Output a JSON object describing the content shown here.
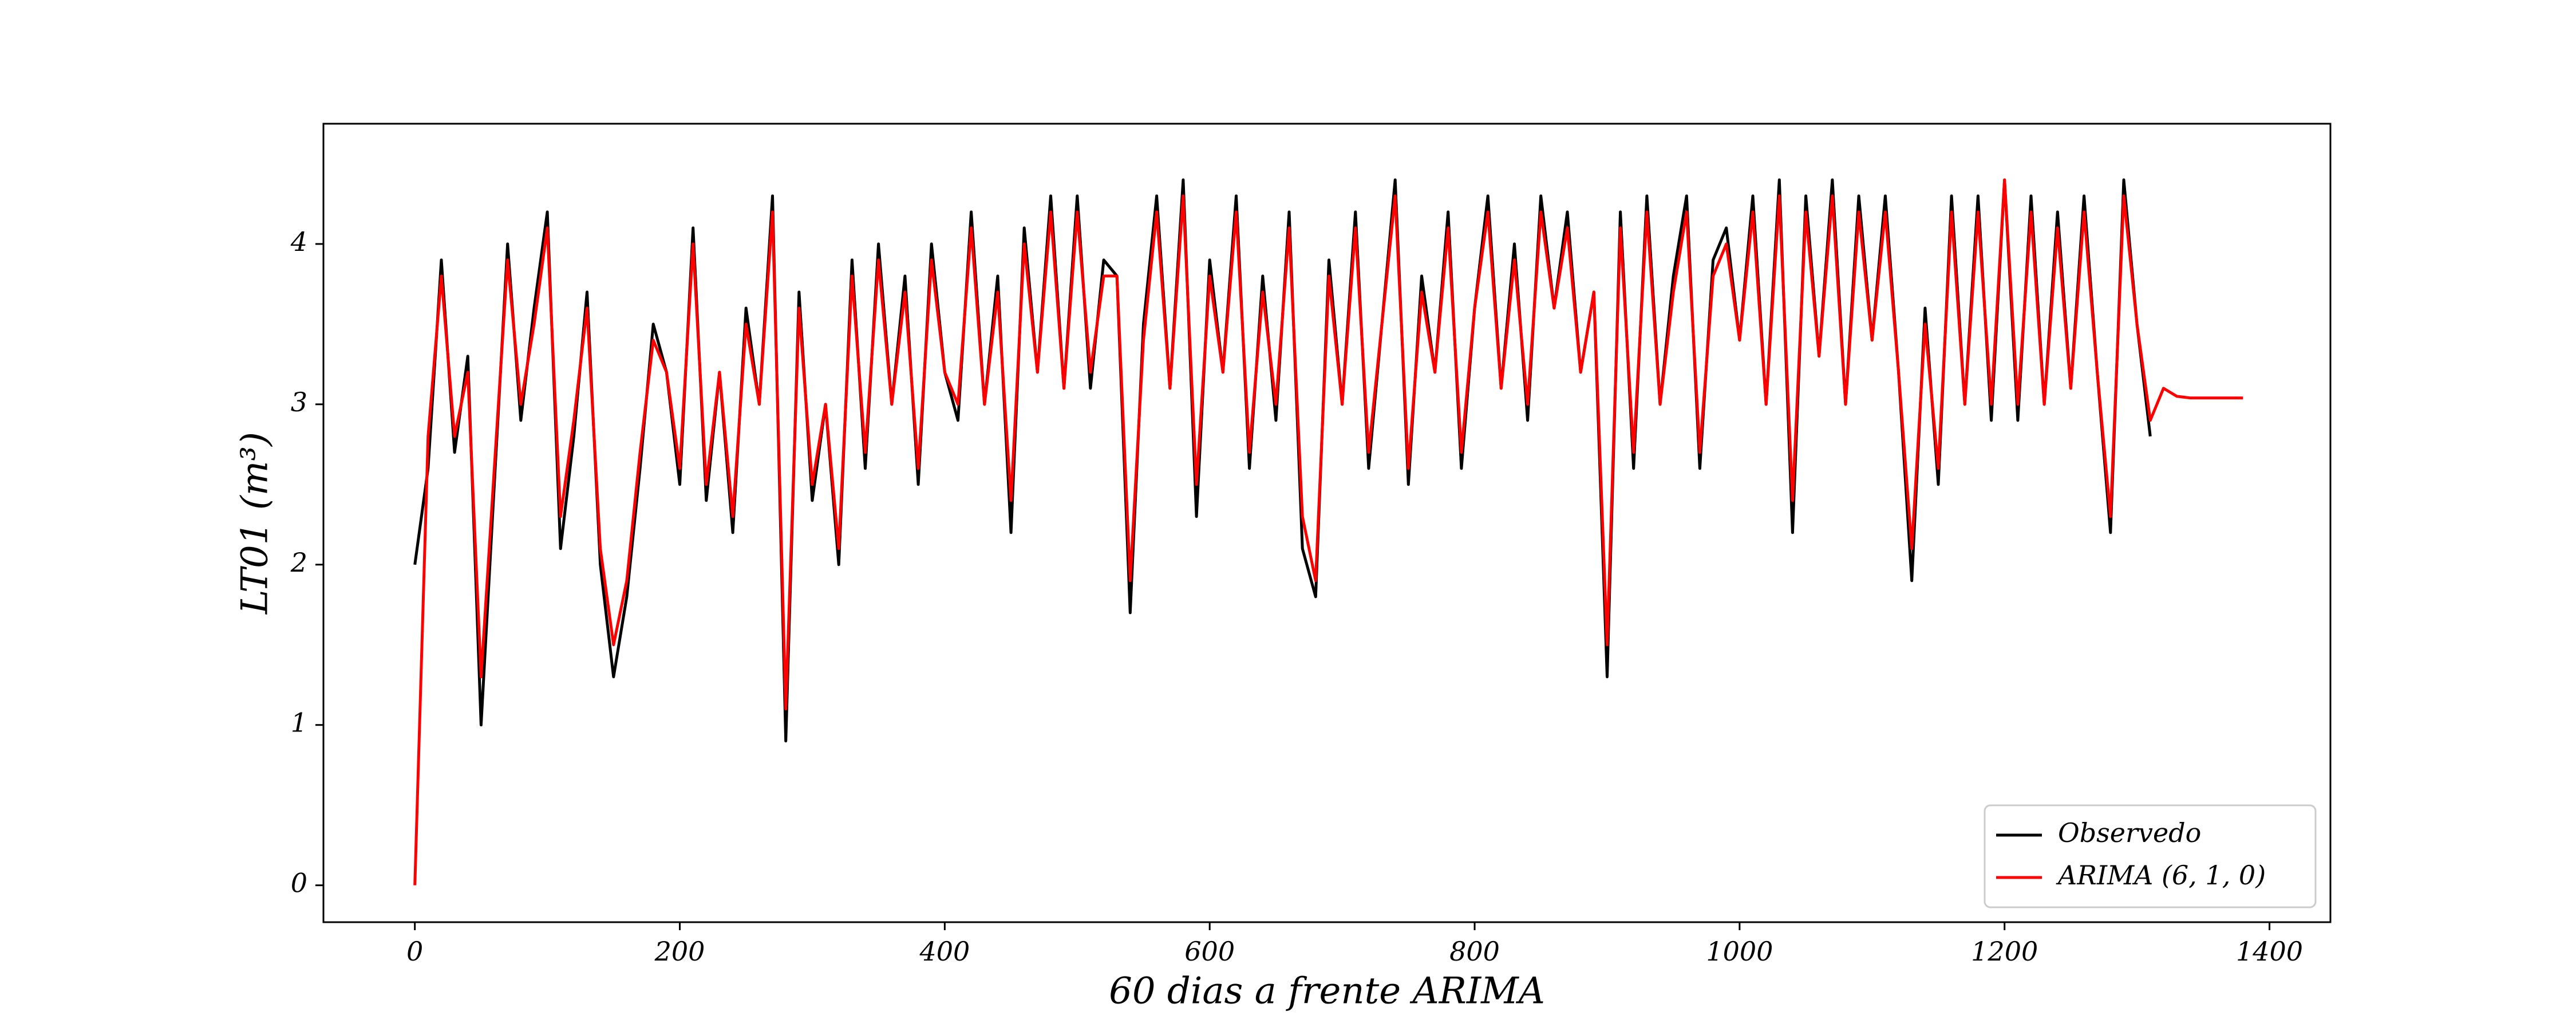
{
  "chart_data": {
    "type": "line",
    "xlabel": "60 dias a frente ARIMA",
    "ylabel": "LT01 (m³)",
    "x": [
      0,
      10,
      20,
      30,
      40,
      50,
      60,
      70,
      80,
      90,
      100,
      110,
      120,
      130,
      140,
      150,
      160,
      170,
      180,
      190,
      200,
      210,
      220,
      230,
      240,
      250,
      260,
      270,
      280,
      290,
      300,
      310,
      320,
      330,
      340,
      350,
      360,
      370,
      380,
      390,
      400,
      410,
      420,
      430,
      440,
      450,
      460,
      470,
      480,
      490,
      500,
      510,
      520,
      530,
      540,
      550,
      560,
      570,
      580,
      590,
      600,
      610,
      620,
      630,
      640,
      650,
      660,
      670,
      680,
      690,
      700,
      710,
      720,
      730,
      740,
      750,
      760,
      770,
      780,
      790,
      800,
      810,
      820,
      830,
      840,
      850,
      860,
      870,
      880,
      890,
      900,
      910,
      920,
      930,
      940,
      950,
      960,
      970,
      980,
      990,
      1000,
      1010,
      1020,
      1030,
      1040,
      1050,
      1060,
      1070,
      1080,
      1090,
      1100,
      1110,
      1120,
      1130,
      1140,
      1150,
      1160,
      1170,
      1180,
      1190,
      1200,
      1210,
      1220,
      1230,
      1240,
      1250,
      1260,
      1270,
      1280,
      1290,
      1300,
      1310,
      1320,
      1330,
      1340,
      1350,
      1360,
      1370,
      1380
    ],
    "series": [
      {
        "name": "Observedo",
        "color": "#000000",
        "values": [
          2.0,
          2.6,
          3.9,
          2.7,
          3.3,
          1.0,
          2.5,
          4.0,
          2.9,
          3.6,
          4.2,
          2.1,
          2.8,
          3.7,
          2.0,
          1.3,
          1.8,
          2.6,
          3.5,
          3.2,
          2.5,
          4.1,
          2.4,
          3.2,
          2.2,
          3.6,
          3.0,
          4.3,
          0.9,
          3.7,
          2.4,
          3.0,
          2.0,
          3.9,
          2.6,
          4.0,
          3.0,
          3.8,
          2.5,
          4.0,
          3.2,
          2.9,
          4.2,
          3.0,
          3.8,
          2.2,
          4.1,
          3.2,
          4.3,
          3.1,
          4.3,
          3.1,
          3.9,
          3.8,
          1.7,
          3.5,
          4.3,
          3.1,
          4.4,
          2.3,
          3.9,
          3.2,
          4.3,
          2.6,
          3.8,
          2.9,
          4.2,
          2.1,
          1.8,
          3.9,
          3.0,
          4.2,
          2.6,
          3.5,
          4.4,
          2.5,
          3.8,
          3.2,
          4.2,
          2.6,
          3.6,
          4.3,
          3.1,
          4.0,
          2.9,
          4.3,
          3.6,
          4.2,
          3.2,
          3.7,
          1.3,
          4.2,
          2.6,
          4.3,
          3.0,
          3.8,
          4.3,
          2.6,
          3.9,
          4.1,
          3.4,
          4.3,
          3.0,
          4.4,
          2.2,
          4.3,
          3.3,
          4.4,
          3.0,
          4.3,
          3.4,
          4.3,
          3.2,
          1.9,
          3.6,
          2.5,
          4.3,
          3.0,
          4.3,
          2.9,
          4.4,
          2.9,
          4.3,
          3.0,
          4.2,
          3.1,
          4.3,
          3.2,
          2.2,
          4.4,
          3.5,
          2.8,
          null,
          null,
          null,
          null,
          null,
          null,
          null
        ]
      },
      {
        "name": "ARIMA (6, 1, 0)",
        "color": "#ff0000",
        "values": [
          0,
          2.8,
          3.8,
          2.8,
          3.2,
          1.3,
          2.6,
          3.9,
          3.0,
          3.5,
          4.1,
          2.3,
          2.9,
          3.6,
          2.1,
          1.5,
          1.9,
          2.7,
          3.4,
          3.2,
          2.6,
          4.0,
          2.5,
          3.2,
          2.3,
          3.5,
          3.0,
          4.2,
          1.1,
          3.6,
          2.5,
          3.0,
          2.1,
          3.8,
          2.7,
          3.9,
          3.0,
          3.7,
          2.6,
          3.9,
          3.2,
          3.0,
          4.1,
          3.0,
          3.7,
          2.4,
          4.0,
          3.2,
          4.2,
          3.1,
          4.2,
          3.2,
          3.8,
          3.8,
          1.9,
          3.4,
          4.2,
          3.1,
          4.3,
          2.5,
          3.8,
          3.2,
          4.2,
          2.7,
          3.7,
          3.0,
          4.1,
          2.3,
          1.9,
          3.8,
          3.0,
          4.1,
          2.7,
          3.5,
          4.3,
          2.6,
          3.7,
          3.2,
          4.1,
          2.7,
          3.6,
          4.2,
          3.1,
          3.9,
          3.0,
          4.2,
          3.6,
          4.1,
          3.2,
          3.7,
          1.5,
          4.1,
          2.7,
          4.2,
          3.0,
          3.7,
          4.2,
          2.7,
          3.8,
          4.0,
          3.4,
          4.2,
          3.0,
          4.3,
          2.4,
          4.2,
          3.3,
          4.3,
          3.0,
          4.2,
          3.4,
          4.2,
          3.2,
          2.1,
          3.5,
          2.6,
          4.2,
          3.0,
          4.2,
          3.0,
          4.4,
          3.0,
          4.2,
          3.0,
          4.1,
          3.1,
          4.2,
          3.2,
          2.3,
          4.3,
          3.5,
          2.9,
          3.1,
          3.05,
          3.04,
          3.04,
          3.04,
          3.04,
          3.04
        ]
      }
    ],
    "xlim": [
      -69,
      1446
    ],
    "ylim": [
      -0.23,
      4.75
    ],
    "xticks": [
      0,
      200,
      400,
      600,
      800,
      1000,
      1200,
      1400
    ],
    "yticks": [
      0,
      1,
      2,
      3,
      4
    ],
    "legend": "lower right"
  }
}
